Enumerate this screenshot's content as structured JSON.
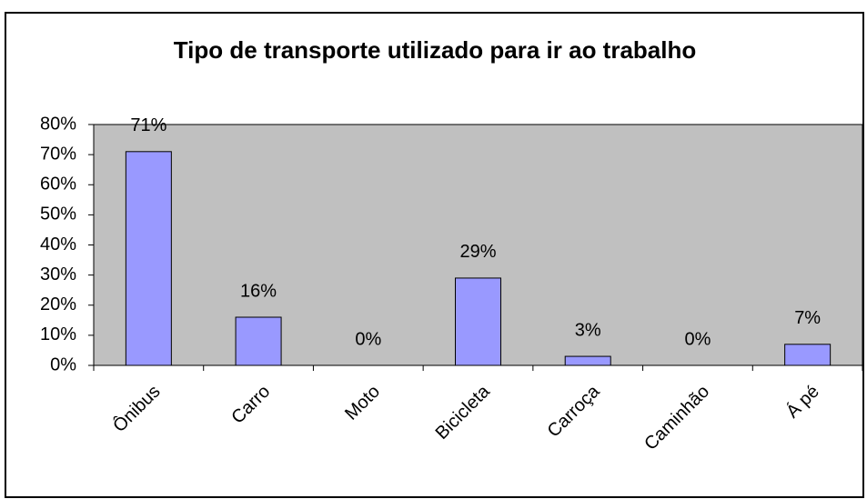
{
  "chart_data": {
    "type": "bar",
    "title": "Tipo de transporte utilizado para ir ao trabalho",
    "categories": [
      "Ônibus",
      "Carro",
      "Moto",
      "Bicicleta",
      "Carroça",
      "Caminhão",
      "Á pé"
    ],
    "values": [
      71,
      16,
      0,
      29,
      3,
      0,
      7
    ],
    "value_labels": [
      "71%",
      "16%",
      "0%",
      "29%",
      "3%",
      "0%",
      "7%"
    ],
    "color": "#9999ff",
    "ylim": [
      0,
      80
    ],
    "yticks": [
      {
        "value": 0,
        "label": "0%"
      },
      {
        "value": 10,
        "label": "10%"
      },
      {
        "value": 20,
        "label": "20%"
      },
      {
        "value": 30,
        "label": "30%"
      },
      {
        "value": 40,
        "label": "40%"
      },
      {
        "value": 50,
        "label": "50%"
      },
      {
        "value": 60,
        "label": "60%"
      },
      {
        "value": 70,
        "label": "70%"
      },
      {
        "value": 80,
        "label": "80%"
      }
    ],
    "grid": false
  }
}
